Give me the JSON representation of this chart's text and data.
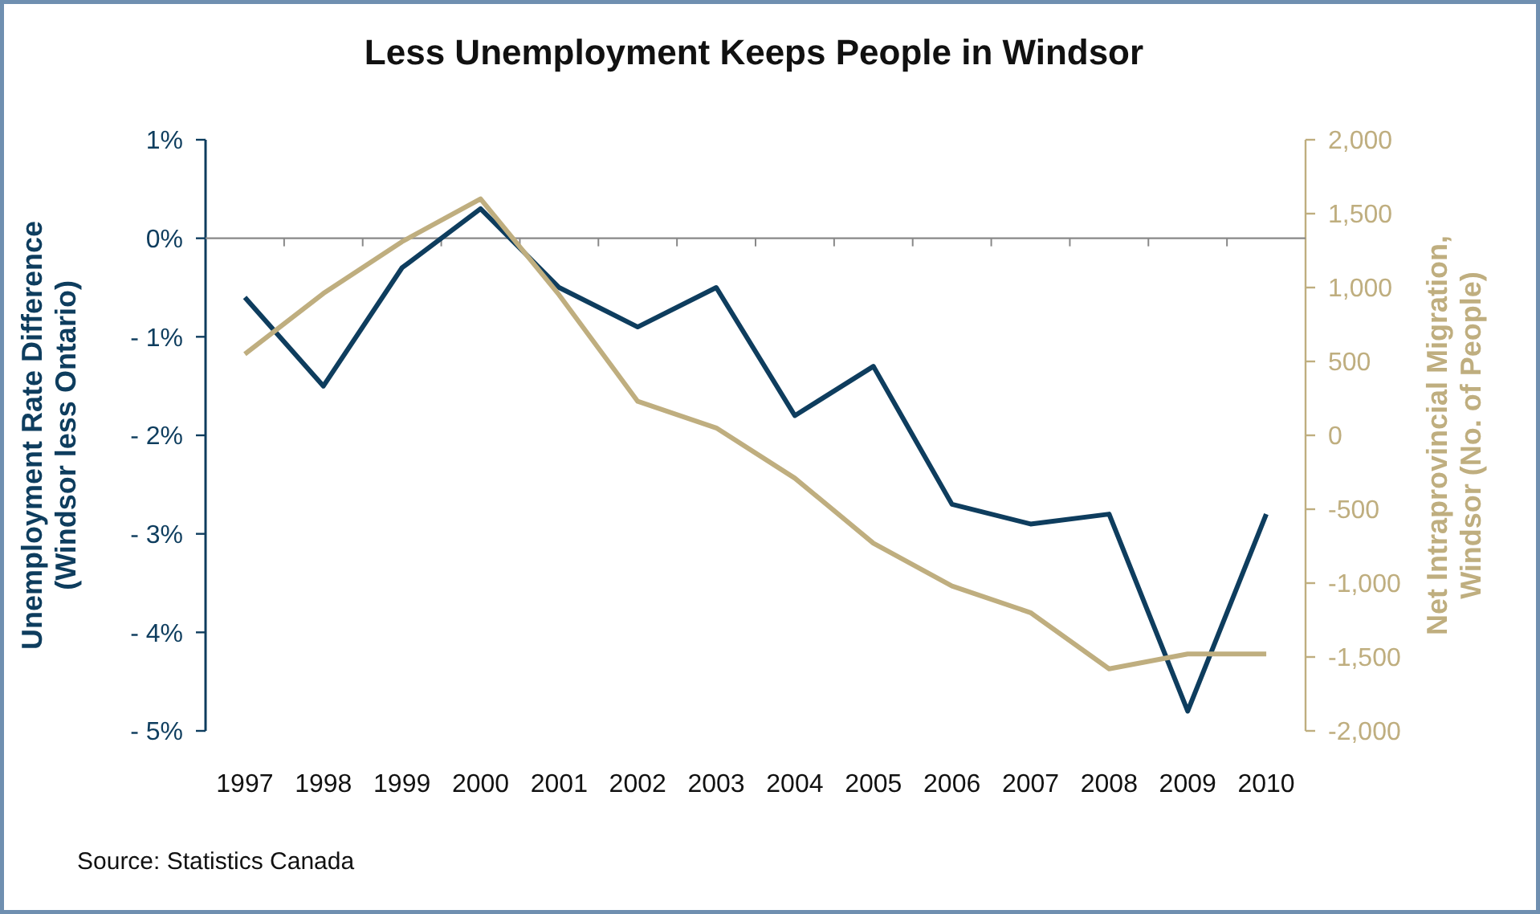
{
  "chart_data": {
    "type": "line",
    "title": "Less Unemployment Keeps People in Windsor",
    "ylabel": "Unemployment Rate Difference\n(Windsor less Ontario)",
    "y2label": "Net Intraprovincial Migration,\nWindsor (No. of People)",
    "annotations": [
      "Source: Statistics Canada"
    ],
    "categories": [
      "1997",
      "1998",
      "1999",
      "2000",
      "2001",
      "2002",
      "2003",
      "2004",
      "2005",
      "2006",
      "2007",
      "2008",
      "2009",
      "2010"
    ],
    "series": [
      {
        "color": "#0e3d5e",
        "values": [
          -0.6,
          -1.5,
          -0.3,
          0.3,
          -0.5,
          -0.9,
          -0.5,
          -1.8,
          -1.3,
          -2.7,
          -2.9,
          -2.8,
          -4.8,
          -2.8
        ]
      },
      {
        "color": "#bfae7f",
        "axis": "y2",
        "values": [
          550,
          960,
          1310,
          1600,
          950,
          230,
          50,
          -290,
          -730,
          -1020,
          -1200,
          -1580,
          -1480,
          -1480
        ]
      }
    ],
    "ylim": [
      -5,
      1
    ],
    "yticks": [
      {
        "value": 1,
        "label": "1%"
      },
      {
        "value": 0,
        "label": "0%"
      },
      {
        "value": -1,
        "label": "- 1%"
      },
      {
        "value": -2,
        "label": "- 2%"
      },
      {
        "value": -3,
        "label": "- 3%"
      },
      {
        "value": -4,
        "label": "- 4%"
      },
      {
        "value": -5,
        "label": "- 5%"
      }
    ],
    "y2lim": [
      -2000,
      2000
    ],
    "y2ticks": [
      {
        "value": 2000,
        "label": "2,000"
      },
      {
        "value": 1500,
        "label": "1,500"
      },
      {
        "value": 1000,
        "label": "1,000"
      },
      500,
      0,
      -500,
      {
        "value": -1000,
        "label": "-1,000"
      },
      {
        "value": -1500,
        "label": "-1,500"
      },
      {
        "value": -2000,
        "label": "-2,000"
      }
    ],
    "marker": "none",
    "line_style": "solid"
  }
}
